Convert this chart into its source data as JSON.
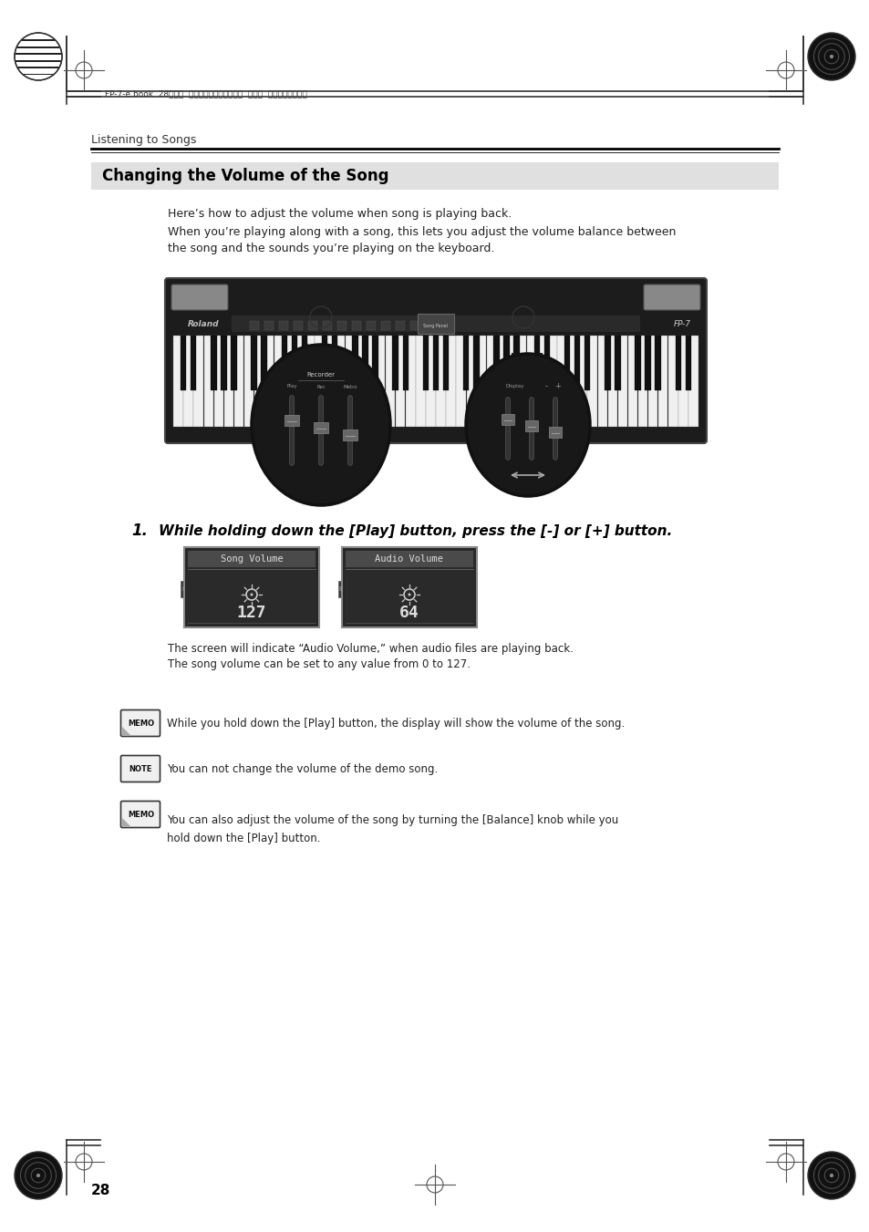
{
  "page_bg": "#ffffff",
  "top_header_text": "FP-7-e.book  28ページ  ２００６年１２月１４日  木曜日  午前１０時５７分",
  "section_label": "Listening to Songs",
  "section_title": "Changing the Volume of the Song",
  "section_title_bg": "#e0e0e0",
  "para1": "Here’s how to adjust the volume when song is playing back.",
  "para2": "When you’re playing along with a song, this lets you adjust the volume balance between\nthe song and the sounds you’re playing on the keyboard.",
  "step_number": "1.",
  "step_text": "While holding down the [Play] button, press the [-] or [+] button.",
  "screen1_title": "Song Volume",
  "screen1_value": "127",
  "screen2_title": "Audio Volume",
  "screen2_value": "64",
  "screen_bg": "#2a2a2a",
  "screen_text_color": "#ffffff",
  "caption1": "The screen will indicate “Audio Volume,” when audio files are playing back.",
  "caption2": "The song volume can be set to any value from 0 to 127.",
  "memo1": "While you hold down the [Play] button, the display will show the volume of the song.",
  "note1": "You can not change the volume of the demo song.",
  "memo2": "You can also adjust the volume of the song by turning the [Balance] knob while you\nhold down the [Play] button.",
  "page_number": "28"
}
